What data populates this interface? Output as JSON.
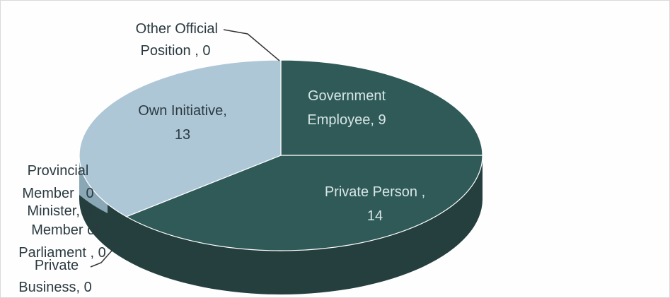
{
  "chart_data": {
    "type": "pie",
    "style": "3d",
    "title": "",
    "slices": [
      {
        "label": "Government Employee",
        "value": 9,
        "color": "#2f5a57",
        "display": [
          "Government",
          "Employee, 9"
        ]
      },
      {
        "label": "Private Person",
        "value": 14,
        "color": "#2f5a57",
        "display": [
          "Private Person ,",
          "14"
        ]
      },
      {
        "label": "Private Business",
        "value": 0,
        "color": "#2f5a57",
        "display": [
          "Private",
          "Business, 0"
        ]
      },
      {
        "label": "Member of Parliament",
        "value": 0,
        "color": "#2f5a57",
        "display": [
          "Member of",
          "Parliament , 0"
        ]
      },
      {
        "label": "Minister",
        "value": 0,
        "color": "#2f5a57",
        "display": [
          "Minister, 0"
        ]
      },
      {
        "label": "Provincial Member",
        "value": 0,
        "color": "#aec7d7",
        "display": [
          "Provincial",
          "Member , 0"
        ]
      },
      {
        "label": "Own Initiative",
        "value": 13,
        "color": "#aec7d7",
        "display": [
          "Own Initiative,",
          "13"
        ]
      },
      {
        "label": "Other Official Position",
        "value": 0,
        "color": "#aec7d7",
        "display": [
          "Other Official",
          "Position , 0"
        ]
      }
    ]
  }
}
